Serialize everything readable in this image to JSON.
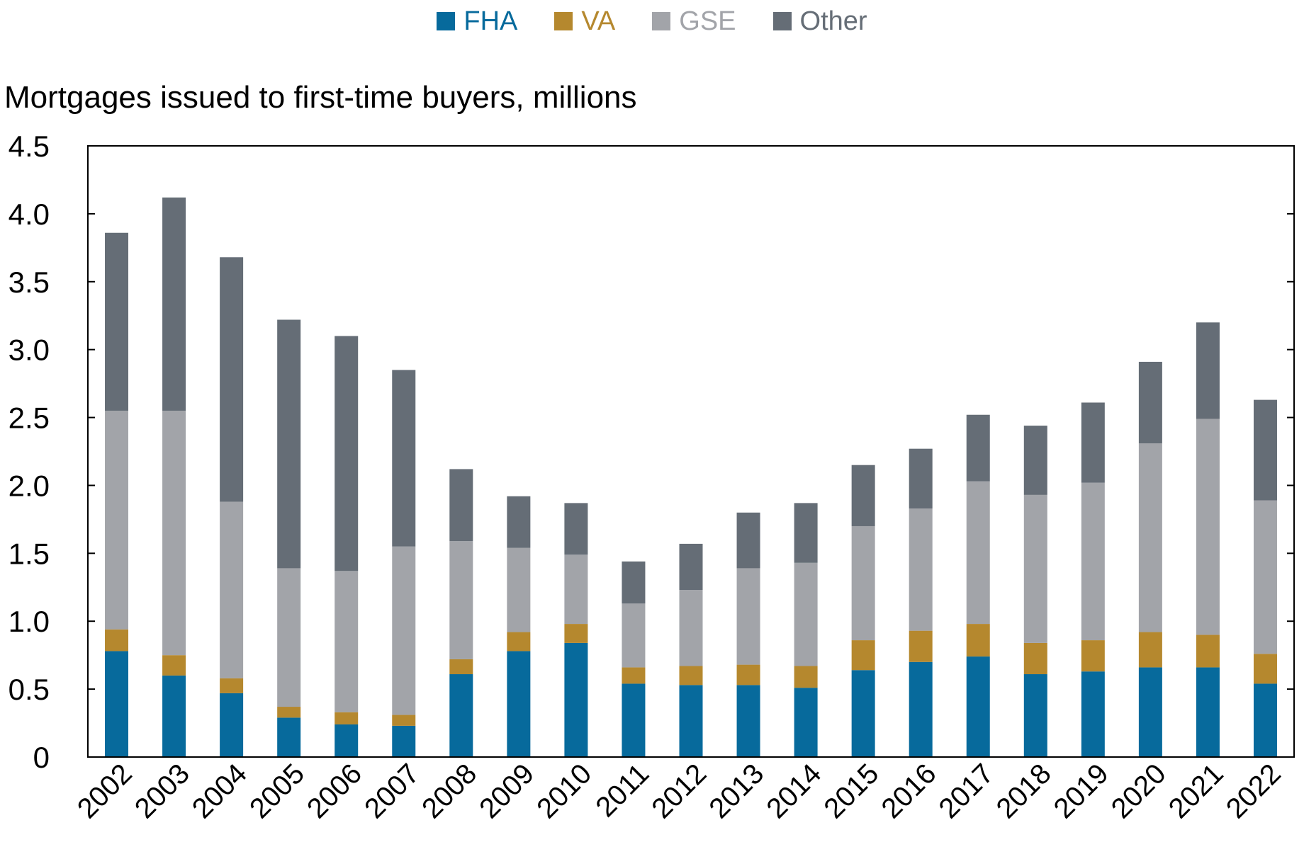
{
  "chart_data": {
    "type": "bar",
    "stacked": true,
    "title": "",
    "ylabel": "Mortgages issued to first-time buyers, millions",
    "xlabel": "",
    "ylim": [
      0,
      4.5
    ],
    "yticks": [
      "0",
      "0.5",
      "1.0",
      "1.5",
      "2.0",
      "2.5",
      "3.0",
      "3.5",
      "4.0",
      "4.5"
    ],
    "legend_position": "top-center",
    "grid": false,
    "categories": [
      "2002",
      "2003",
      "2004",
      "2005",
      "2006",
      "2007",
      "2008",
      "2009",
      "2010",
      "2011",
      "2012",
      "2013",
      "2014",
      "2015",
      "2016",
      "2017",
      "2018",
      "2019",
      "2020",
      "2021",
      "2022"
    ],
    "series": [
      {
        "name": "FHA",
        "color": "#076a9c",
        "values": [
          0.78,
          0.6,
          0.47,
          0.29,
          0.24,
          0.23,
          0.61,
          0.78,
          0.84,
          0.54,
          0.53,
          0.53,
          0.51,
          0.64,
          0.7,
          0.74,
          0.61,
          0.63,
          0.66,
          0.66,
          0.54
        ]
      },
      {
        "name": "VA",
        "color": "#b5882e",
        "values": [
          0.16,
          0.15,
          0.11,
          0.08,
          0.09,
          0.08,
          0.11,
          0.14,
          0.14,
          0.12,
          0.14,
          0.15,
          0.16,
          0.22,
          0.23,
          0.24,
          0.23,
          0.23,
          0.26,
          0.24,
          0.22
        ]
      },
      {
        "name": "GSE",
        "color": "#a2a4a9",
        "values": [
          1.61,
          1.8,
          1.3,
          1.02,
          1.04,
          1.24,
          0.87,
          0.62,
          0.51,
          0.47,
          0.56,
          0.71,
          0.76,
          0.84,
          0.9,
          1.05,
          1.09,
          1.16,
          1.39,
          1.59,
          1.13
        ]
      },
      {
        "name": "Other",
        "color": "#656d76",
        "values": [
          1.31,
          1.57,
          1.8,
          1.83,
          1.73,
          1.3,
          0.53,
          0.38,
          0.38,
          0.31,
          0.34,
          0.41,
          0.44,
          0.45,
          0.44,
          0.49,
          0.51,
          0.59,
          0.6,
          0.71,
          0.74
        ]
      }
    ]
  }
}
